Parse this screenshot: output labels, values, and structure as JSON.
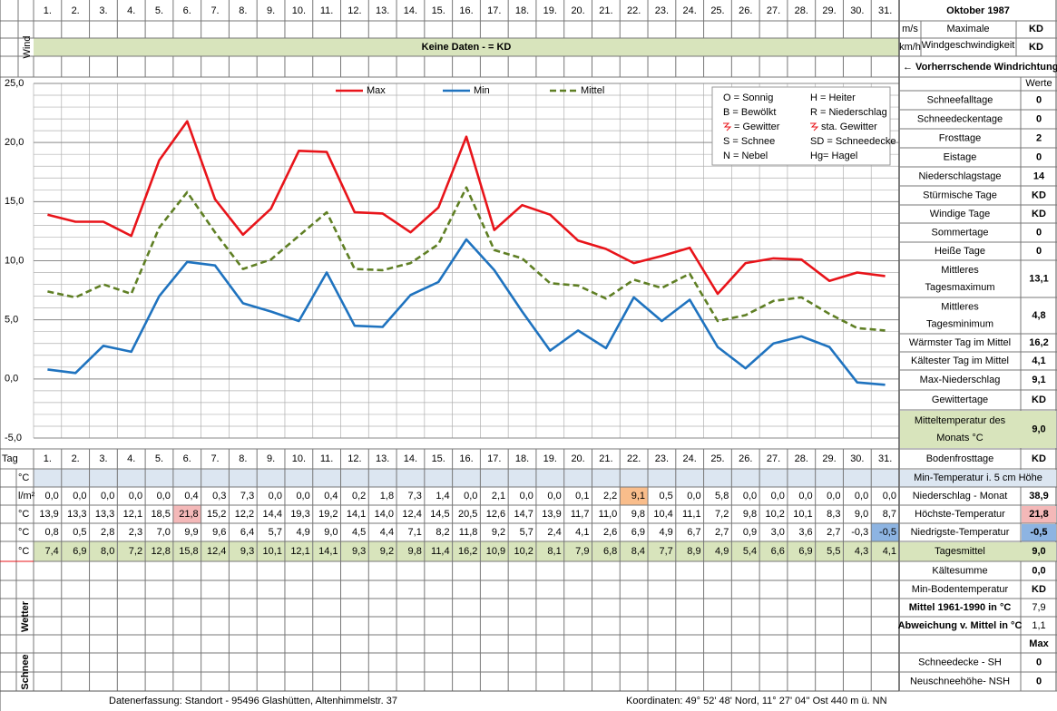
{
  "title": "Oktober 1987",
  "wind": {
    "label": "Wind",
    "units": [
      "m/s",
      "km/h"
    ],
    "max_label": [
      "Maximale",
      "Windgeschwindigkeit"
    ],
    "max_values": [
      "KD",
      "KD"
    ],
    "no_data": "Keine Daten -  = KD",
    "direction": "← Vorherrschende Windrichtung"
  },
  "chart_data": {
    "type": "line",
    "categories": [
      "1.",
      "2.",
      "3.",
      "4.",
      "5.",
      "6.",
      "7.",
      "8.",
      "9.",
      "10.",
      "11.",
      "12.",
      "13.",
      "14.",
      "15.",
      "16.",
      "17.",
      "18.",
      "19.",
      "20.",
      "21.",
      "22.",
      "23.",
      "24.",
      "25.",
      "26.",
      "27.",
      "28.",
      "29.",
      "30.",
      "31."
    ],
    "ylim": [
      -5,
      25
    ],
    "yticks": [
      {
        "value": -5,
        "label": "-5,0"
      },
      {
        "value": 0,
        "label": "0,0"
      },
      {
        "value": 5,
        "label": "5,0"
      },
      {
        "value": 10,
        "label": "10,0"
      },
      {
        "value": 15,
        "label": "15,0"
      },
      {
        "value": 20,
        "label": "20,0"
      },
      {
        "value": 25,
        "label": "25,0"
      }
    ],
    "grid": true,
    "legend": "top",
    "series": [
      {
        "name": "Max",
        "color": "#e8141a",
        "dashed": false,
        "values": [
          13.9,
          13.3,
          13.3,
          12.1,
          18.5,
          21.8,
          15.2,
          12.2,
          14.4,
          19.3,
          19.2,
          14.1,
          14.0,
          12.4,
          14.5,
          20.5,
          12.6,
          14.7,
          13.9,
          11.7,
          11.0,
          9.8,
          10.4,
          11.1,
          7.2,
          9.8,
          10.2,
          10.1,
          8.3,
          9.0,
          8.7
        ],
        "value_labels": [
          "13,9",
          "13,3",
          "13,3",
          "12,1",
          "18,5",
          "21,8",
          "15,2",
          "12,2",
          "14,4",
          "19,3",
          "19,2",
          "14,1",
          "14,0",
          "12,4",
          "14,5",
          "20,5",
          "12,6",
          "14,7",
          "13,9",
          "11,7",
          "11,0",
          "9,8",
          "10,4",
          "11,1",
          "7,2",
          "9,8",
          "10,2",
          "10,1",
          "8,3",
          "9,0",
          "8,7"
        ]
      },
      {
        "name": "Min",
        "color": "#1f73bf",
        "dashed": false,
        "values": [
          0.8,
          0.5,
          2.8,
          2.3,
          7.0,
          9.9,
          9.6,
          6.4,
          5.7,
          4.9,
          9.0,
          4.5,
          4.4,
          7.1,
          8.2,
          11.8,
          9.2,
          5.7,
          2.4,
          4.1,
          2.6,
          6.9,
          4.9,
          6.7,
          2.7,
          0.9,
          3.0,
          3.6,
          2.7,
          -0.3,
          -0.5
        ],
        "value_labels": [
          "0,8",
          "0,5",
          "2,8",
          "2,3",
          "7,0",
          "9,9",
          "9,6",
          "6,4",
          "5,7",
          "4,9",
          "9,0",
          "4,5",
          "4,4",
          "7,1",
          "8,2",
          "11,8",
          "9,2",
          "5,7",
          "2,4",
          "4,1",
          "2,6",
          "6,9",
          "4,9",
          "6,7",
          "2,7",
          "0,9",
          "3,0",
          "3,6",
          "2,7",
          "-0,3",
          "-0,5"
        ]
      },
      {
        "name": "Mittel",
        "color": "#5f7f24",
        "dashed": true,
        "values": [
          7.4,
          6.9,
          8.0,
          7.2,
          12.8,
          15.8,
          12.4,
          9.3,
          10.1,
          12.1,
          14.1,
          9.3,
          9.2,
          9.8,
          11.4,
          16.2,
          10.9,
          10.2,
          8.1,
          7.9,
          6.8,
          8.4,
          7.7,
          8.9,
          4.9,
          5.4,
          6.6,
          6.9,
          5.5,
          4.3,
          4.1
        ],
        "value_labels": [
          "7,4",
          "6,9",
          "8,0",
          "7,2",
          "12,8",
          "15,8",
          "12,4",
          "9,3",
          "10,1",
          "12,1",
          "14,1",
          "9,3",
          "9,2",
          "9,8",
          "11,4",
          "16,2",
          "10,9",
          "10,2",
          "8,1",
          "7,9",
          "6,8",
          "8,4",
          "7,7",
          "8,9",
          "4,9",
          "5,4",
          "6,6",
          "6,9",
          "5,5",
          "4,3",
          "4,1"
        ]
      }
    ]
  },
  "legend_key": [
    [
      "O = Sonnig",
      "H = Heiter"
    ],
    [
      "B = Bewölkt",
      "R = Niederschlag"
    ],
    [
      "= Gewitter",
      "sta. Gewitter"
    ],
    [
      "S = Schnee",
      "SD = Schneedecke"
    ],
    [
      "N = Nebel",
      "Hg= Hagel"
    ]
  ],
  "table": {
    "day_label": "Tag",
    "units": [
      "°C",
      "l/m²",
      "°C",
      "°C",
      "°C"
    ],
    "precipitation": [
      "0,0",
      "0,0",
      "0,0",
      "0,0",
      "0,0",
      "0,4",
      "0,3",
      "7,3",
      "0,0",
      "0,0",
      "0,4",
      "0,2",
      "1,8",
      "7,3",
      "1,4",
      "0,0",
      "2,1",
      "0,0",
      "0,0",
      "0,1",
      "2,2",
      "9,1",
      "0,5",
      "0,0",
      "5,8",
      "0,0",
      "0,0",
      "0,0",
      "0,0",
      "0,0",
      "0,0"
    ],
    "weather_label": "Wetter",
    "snow_label": "Schnee"
  },
  "stats_header": "Werte",
  "stats": [
    {
      "label": [
        "Schneefalltage"
      ],
      "value": "0"
    },
    {
      "label": [
        "Schneedeckentage"
      ],
      "value": "0"
    },
    {
      "label": [
        "Frosttage"
      ],
      "value": "2"
    },
    {
      "label": [
        "Eistage"
      ],
      "value": "0"
    },
    {
      "label": [
        "Niederschlagstage"
      ],
      "value": "14"
    },
    {
      "label": [
        "Stürmische Tage"
      ],
      "value": "KD"
    },
    {
      "label": [
        "Windige Tage"
      ],
      "value": "KD"
    },
    {
      "label": [
        "Sommertage"
      ],
      "value": "0"
    },
    {
      "label": [
        "Heiße Tage"
      ],
      "value": "0"
    },
    {
      "label": [
        "Mittleres",
        "Tagesmaximum"
      ],
      "value": "13,1"
    },
    {
      "label": [
        "Mittleres",
        "Tagesminimum"
      ],
      "value": "4,8"
    },
    {
      "label": [
        "Wärmster Tag im Mittel"
      ],
      "value": "16,2"
    },
    {
      "label": [
        "Kältester Tag im Mittel"
      ],
      "value": "4,1"
    },
    {
      "label": [
        "Max-Niederschlag"
      ],
      "value": "9,1"
    },
    {
      "label": [
        "Gewittertage"
      ],
      "value": "KD"
    },
    {
      "label": [
        "Mitteltemperatur des",
        "Monats °C"
      ],
      "value": "9,0"
    }
  ],
  "summary": [
    {
      "label": "Bodenfrosttage",
      "value": "KD"
    },
    {
      "label": "Min-Temperatur i. 5 cm Höhe"
    },
    {
      "label": "Niederschlag - Monat",
      "value": "38,9"
    },
    {
      "label": "Höchste-Temperatur",
      "value": "21,8"
    },
    {
      "label": "Niedrigste-Temperatur",
      "value": "-0,5"
    },
    {
      "label": "Tagesmittel",
      "value": "9,0"
    },
    {
      "label": "Kältesumme",
      "value": "0,0"
    },
    {
      "label": "Min-Bodentemperatur",
      "value": "KD"
    },
    {
      "label": "Mittel 1961-1990 in °C",
      "value": "7,9"
    },
    {
      "label": "Abweichung v. Mittel in °C",
      "value": "1,1"
    },
    {
      "value": "Max"
    },
    {
      "label": "Schneedecke -   SH",
      "value": "0"
    },
    {
      "label": "Neuschneehöhe- NSH",
      "value": "0"
    }
  ],
  "footer": {
    "left": "Datenerfassung:  Standort -   95496  Glashütten, Altenhimmelstr. 37",
    "right": "Koordinaten:  49° 52' 48' Nord,  11° 27' 04'' Ost   440 m ü. NN"
  }
}
